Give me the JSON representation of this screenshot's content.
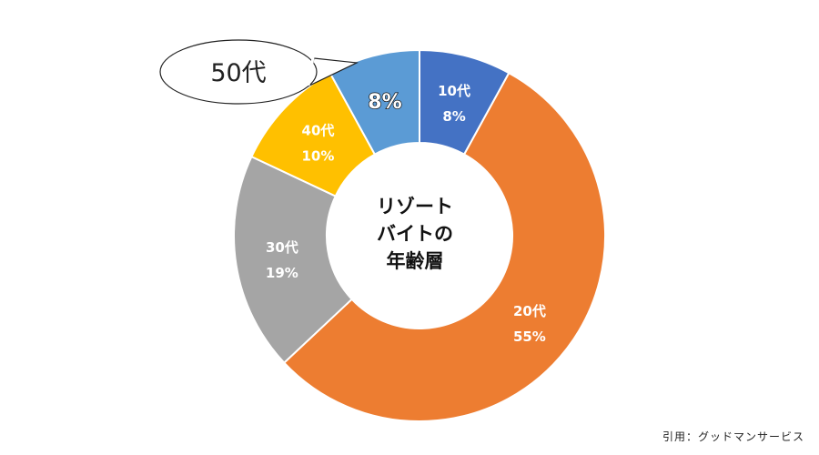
{
  "chart_data": {
    "type": "pie",
    "title": "",
    "center_label": [
      "リゾート",
      "バイトの",
      "年齢層"
    ],
    "slices": [
      {
        "label": "10代",
        "value": 8,
        "display": "8%",
        "color": "#4472c4"
      },
      {
        "label": "20代",
        "value": 55,
        "display": "55%",
        "color": "#ed7d31"
      },
      {
        "label": "30代",
        "value": 19,
        "display": "19%",
        "color": "#a5a5a5"
      },
      {
        "label": "40代",
        "value": 10,
        "display": "10%",
        "color": "#ffc000"
      },
      {
        "label": "50代",
        "value": 8,
        "display": "8%",
        "color": "#5b9bd5"
      }
    ],
    "legend": "none"
  },
  "callout": {
    "text": "50代"
  },
  "source": "引用：グッドマンサービス"
}
